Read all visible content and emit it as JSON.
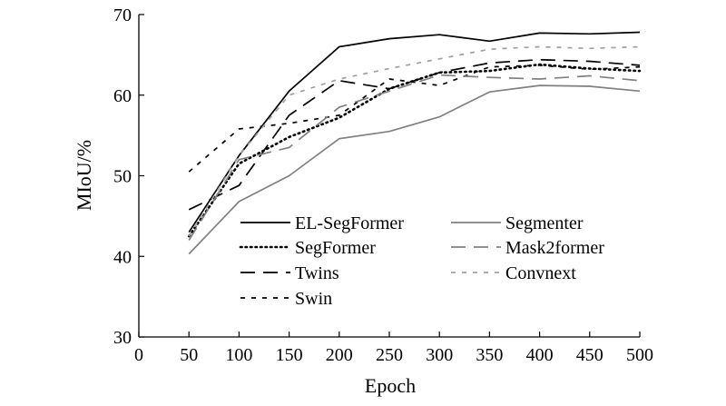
{
  "chart_data": {
    "type": "line",
    "xlabel": "Epoch",
    "ylabel": "MIoU/%",
    "xlim": [
      0,
      500
    ],
    "ylim": [
      30,
      70
    ],
    "xticks": [
      0,
      50,
      100,
      150,
      200,
      250,
      300,
      350,
      400,
      450,
      500
    ],
    "yticks": [
      30,
      40,
      50,
      60,
      70
    ],
    "grid": false,
    "legend_position": "lower-right (inside plot)",
    "x": [
      50,
      100,
      150,
      200,
      250,
      300,
      350,
      400,
      450,
      500
    ],
    "series": [
      {
        "name": "EL-SegFormer",
        "style": "solid",
        "color": "#000000",
        "values": [
          43.0,
          52.5,
          60.5,
          66.0,
          67.0,
          67.5,
          66.7,
          67.7,
          67.6,
          67.8
        ]
      },
      {
        "name": "SegFormer",
        "style": "dotted",
        "color": "#000000",
        "values": [
          42.5,
          51.5,
          54.8,
          57.2,
          60.8,
          62.8,
          63.0,
          63.8,
          63.3,
          63.0
        ]
      },
      {
        "name": "Twins",
        "style": "long-dash",
        "color": "#000000",
        "values": [
          45.8,
          48.8,
          57.5,
          61.8,
          60.8,
          62.8,
          64.0,
          64.4,
          64.2,
          63.7
        ]
      },
      {
        "name": "Swin",
        "style": "short-dash",
        "color": "#000000",
        "values": [
          50.5,
          55.8,
          56.5,
          57.5,
          62.0,
          61.2,
          63.5,
          63.7,
          63.2,
          63.5
        ]
      },
      {
        "name": "Segmenter",
        "style": "solid",
        "color": "#808080",
        "values": [
          40.3,
          46.8,
          50.0,
          54.6,
          55.5,
          57.3,
          60.4,
          61.2,
          61.1,
          60.5
        ]
      },
      {
        "name": "Mask2former",
        "style": "long-dash",
        "color": "#808080",
        "values": [
          42.0,
          52.0,
          53.5,
          58.5,
          60.5,
          62.5,
          62.2,
          62.0,
          62.4,
          61.8
        ]
      },
      {
        "name": "Convnext",
        "style": "short-dash",
        "color": "#a0a0a0",
        "values": [
          42.5,
          52.5,
          60.0,
          62.0,
          63.3,
          64.5,
          65.7,
          66.0,
          65.8,
          66.0
        ]
      }
    ]
  }
}
